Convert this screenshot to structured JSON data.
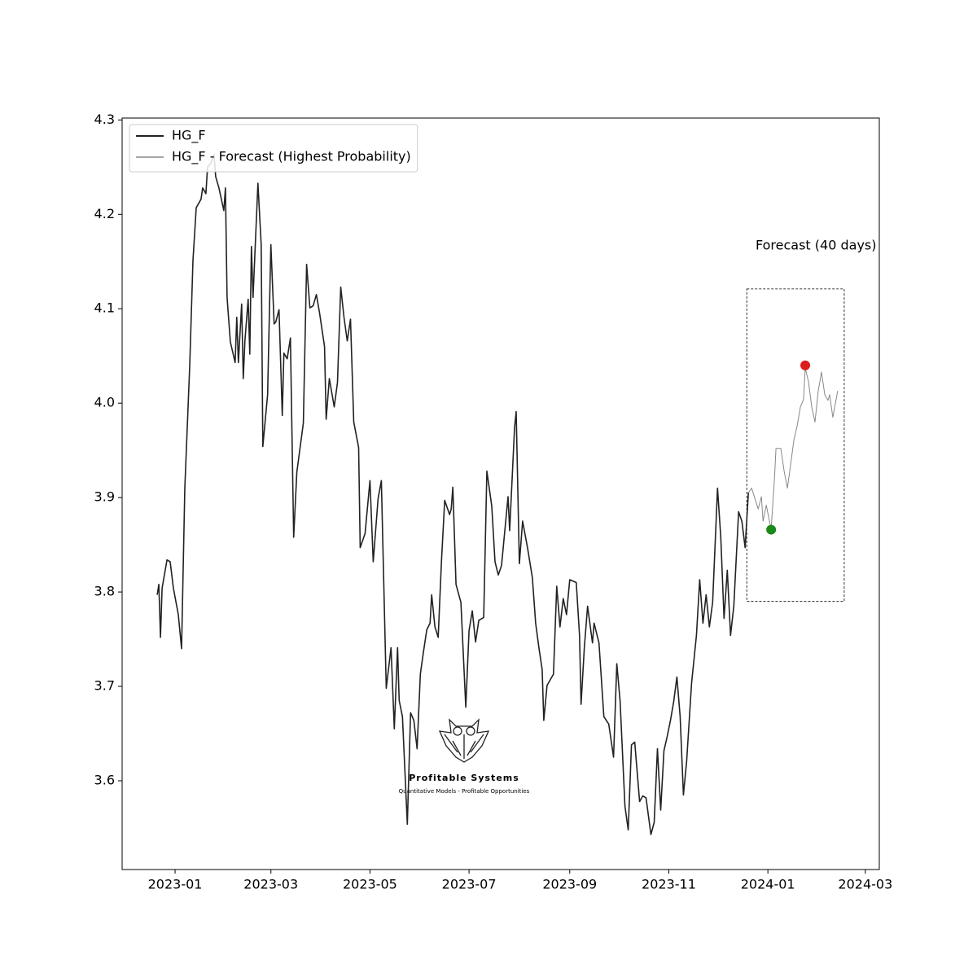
{
  "chart_data": {
    "type": "line",
    "annotation": "Forecast (40 days)",
    "watermark": {
      "title": "Profitable Systems",
      "subtitle": "Quantitative Models - Profitable Opportunities"
    },
    "legend": "upper left",
    "xlim": [
      -32.6,
      433.6
    ],
    "ylim": [
      3.506,
      4.302
    ],
    "xticks": [
      {
        "value": 0,
        "label": "2023-01"
      },
      {
        "value": 59,
        "label": "2023-03"
      },
      {
        "value": 120,
        "label": "2023-05"
      },
      {
        "value": 181,
        "label": "2023-07"
      },
      {
        "value": 243,
        "label": "2023-09"
      },
      {
        "value": 304,
        "label": "2023-11"
      },
      {
        "value": 365,
        "label": "2024-01"
      },
      {
        "value": 425,
        "label": "2024-03"
      }
    ],
    "yticks": [
      3.6,
      3.7,
      3.8,
      3.9,
      {
        "value": 4,
        "label": "4.0"
      },
      4.1,
      4.2,
      4.3
    ],
    "series": [
      {
        "name": "HG_F",
        "color": "#222222",
        "width": 1.6,
        "x": [
          -11,
          -10,
          -9,
          -8,
          -5,
          -3,
          -1,
          2,
          4,
          6,
          9,
          11,
          13,
          16,
          17,
          19,
          20,
          22,
          24,
          25,
          27,
          30,
          31,
          32,
          34,
          37,
          38,
          39,
          41,
          42,
          43,
          45,
          46,
          47,
          48,
          51,
          53,
          54,
          57,
          59,
          61,
          62,
          64,
          66,
          67,
          69,
          71,
          73,
          75,
          79,
          81,
          83,
          85,
          87,
          89,
          92,
          93,
          95,
          98,
          100,
          102,
          104,
          106,
          108,
          110,
          113,
          114,
          117,
          120,
          122,
          125,
          127,
          130,
          133,
          135,
          137,
          138,
          140,
          143,
          145,
          147,
          149,
          151,
          153,
          155,
          157,
          158,
          160,
          162,
          164,
          166,
          169,
          170,
          171,
          173,
          176,
          179,
          181,
          183,
          185,
          187,
          190,
          192,
          195,
          197,
          199,
          201,
          205,
          206,
          209,
          210,
          212,
          214,
          217,
          220,
          222,
          224,
          226,
          227,
          229,
          233,
          235,
          237,
          239,
          241,
          243,
          247,
          249,
          250,
          252,
          254,
          257,
          258,
          261,
          264,
          267,
          270,
          272,
          274,
          277,
          279,
          281,
          283,
          286,
          288,
          290,
          293,
          295,
          297,
          299,
          301,
          303,
          305,
          307,
          309,
          311,
          313,
          315,
          318,
          321,
          323,
          325,
          327,
          329,
          331,
          334,
          336,
          338,
          340,
          342,
          344,
          347,
          349,
          351,
          353
        ],
        "values": [
          3.797,
          3.808,
          3.752,
          3.804,
          3.834,
          3.832,
          3.804,
          3.776,
          3.74,
          3.91,
          4.039,
          4.151,
          4.207,
          4.216,
          4.228,
          4.222,
          4.25,
          4.254,
          4.263,
          4.24,
          4.228,
          4.204,
          4.228,
          4.112,
          4.065,
          4.043,
          4.091,
          4.043,
          4.105,
          4.026,
          4.066,
          4.11,
          4.052,
          4.166,
          4.112,
          4.233,
          4.168,
          3.954,
          4.009,
          4.168,
          4.084,
          4.086,
          4.099,
          3.987,
          4.053,
          4.047,
          4.069,
          3.858,
          3.927,
          3.979,
          4.147,
          4.101,
          4.103,
          4.115,
          4.095,
          4.06,
          3.983,
          4.026,
          3.996,
          4.022,
          4.123,
          4.091,
          4.066,
          4.089,
          3.98,
          3.953,
          3.847,
          3.862,
          3.918,
          3.832,
          3.899,
          3.918,
          3.698,
          3.741,
          3.655,
          3.741,
          3.685,
          3.668,
          3.554,
          3.672,
          3.664,
          3.634,
          3.713,
          3.737,
          3.76,
          3.767,
          3.797,
          3.763,
          3.752,
          3.832,
          3.897,
          3.882,
          3.888,
          3.911,
          3.808,
          3.789,
          3.678,
          3.759,
          3.78,
          3.747,
          3.77,
          3.773,
          3.928,
          3.891,
          3.832,
          3.818,
          3.828,
          3.901,
          3.865,
          3.974,
          3.991,
          3.83,
          3.875,
          3.847,
          3.815,
          3.767,
          3.741,
          3.718,
          3.664,
          3.701,
          3.713,
          3.806,
          3.763,
          3.793,
          3.776,
          3.813,
          3.81,
          3.754,
          3.681,
          3.741,
          3.785,
          3.746,
          3.767,
          3.746,
          3.668,
          3.66,
          3.625,
          3.724,
          3.685,
          3.573,
          3.548,
          3.638,
          3.641,
          3.578,
          3.584,
          3.582,
          3.543,
          3.556,
          3.634,
          3.569,
          3.632,
          3.647,
          3.664,
          3.684,
          3.71,
          3.668,
          3.585,
          3.621,
          3.703,
          3.754,
          3.813,
          3.767,
          3.797,
          3.763,
          3.789,
          3.91,
          3.858,
          3.772,
          3.823,
          3.754,
          3.785,
          3.885,
          3.875,
          3.847,
          3.905
        ]
      },
      {
        "name": "HG_F - Forecast (Highest Probability)",
        "color": "#888888",
        "width": 1,
        "x": [
          353,
          355,
          357,
          359,
          361,
          362,
          364,
          367,
          369,
          370,
          373,
          375,
          377,
          379,
          381,
          383,
          385,
          387,
          388,
          390,
          392,
          394,
          396,
          398,
          400,
          402,
          403,
          405,
          408
        ],
        "values": [
          3.905,
          3.91,
          3.899,
          3.888,
          3.901,
          3.875,
          3.892,
          3.866,
          3.918,
          3.952,
          3.952,
          3.928,
          3.91,
          3.935,
          3.961,
          3.976,
          3.996,
          4.004,
          4.037,
          4.023,
          3.996,
          3.98,
          4.013,
          4.033,
          4.009,
          4.003,
          4.009,
          3.985,
          4.013
        ]
      }
    ],
    "points": [
      {
        "x": 367,
        "y": 3.866,
        "color": "#1a8a1a"
      },
      {
        "x": 388,
        "y": 4.04,
        "color": "#dd1c1c"
      }
    ],
    "forecast_box": {
      "xlim": [
        352,
        412
      ],
      "ylim": [
        3.79,
        4.121
      ]
    }
  }
}
